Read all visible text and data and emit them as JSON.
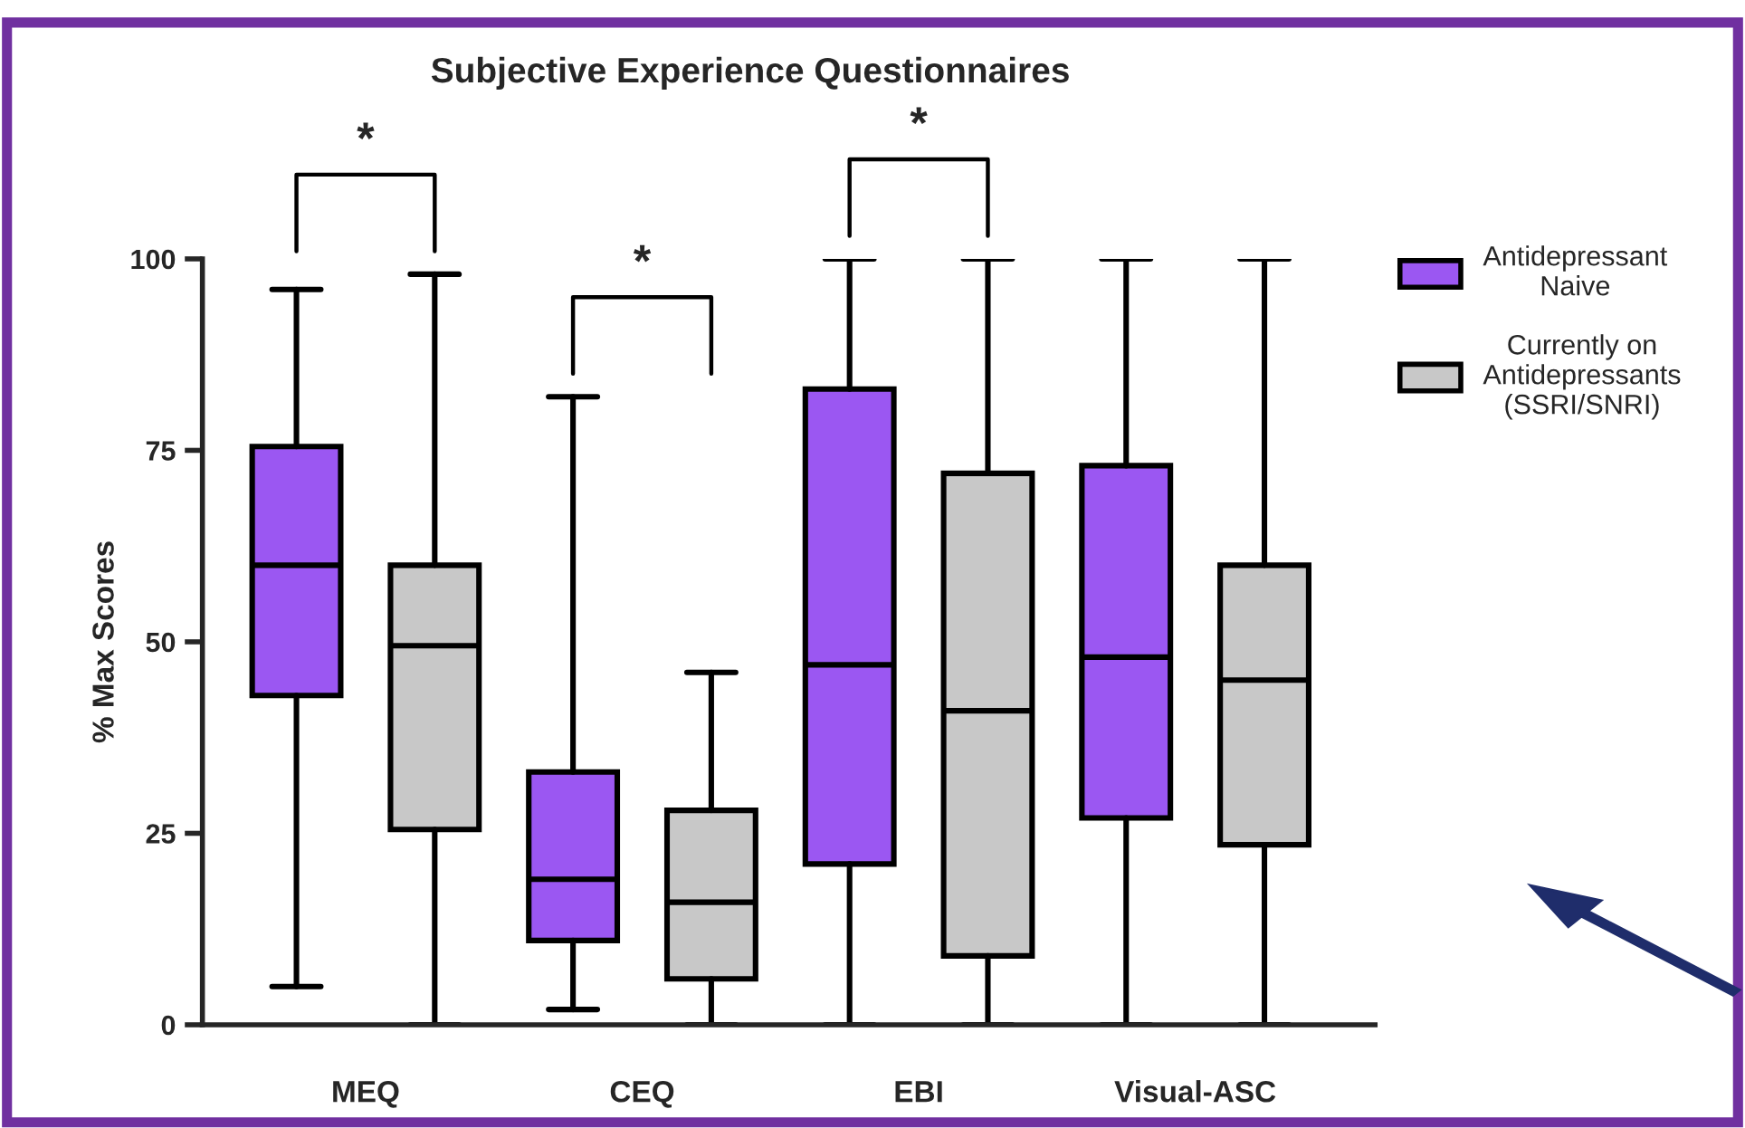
{
  "chart_data": {
    "type": "box",
    "title": "Subjective Experience Questionnaires",
    "ylabel": "% Max Scores",
    "categories": [
      "MEQ",
      "CEQ",
      "EBI",
      "Visual-ASC"
    ],
    "series": [
      {
        "name": "Antidepressant\nNaive",
        "color": "#9b57f2",
        "boxes": [
          {
            "low": 5,
            "q1": 43,
            "median": 60,
            "q3": 75.5,
            "high": 96
          },
          {
            "low": 2,
            "q1": 11,
            "median": 19,
            "q3": 33,
            "high": 82
          },
          {
            "low": 0,
            "q1": 21,
            "median": 47,
            "q3": 83,
            "high": 100
          },
          {
            "low": 0,
            "q1": 27,
            "median": 48,
            "q3": 73,
            "high": 100
          }
        ]
      },
      {
        "name": "Currently on\nAntidepressants\n(SSRI/SNRI)",
        "color": "#c8c8c8",
        "boxes": [
          {
            "low": 0,
            "q1": 25.5,
            "median": 49.5,
            "q3": 60,
            "high": 98
          },
          {
            "low": 0,
            "q1": 6,
            "median": 16,
            "q3": 28,
            "high": 46
          },
          {
            "low": 0,
            "q1": 9,
            "median": 41,
            "q3": 72,
            "high": 100
          },
          {
            "low": 0,
            "q1": 23.5,
            "median": 45,
            "q3": 60,
            "high": 100
          }
        ]
      }
    ],
    "ylim": [
      0,
      100
    ],
    "yticks": [
      0,
      25,
      50,
      75,
      100
    ],
    "grid": false,
    "legend": "top right",
    "annotations": [
      "*",
      "*",
      "*"
    ]
  }
}
